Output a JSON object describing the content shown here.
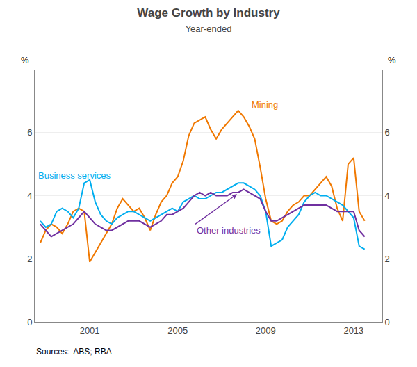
{
  "chart_data": {
    "type": "line",
    "title": "Wage Growth by Industry",
    "subtitle": "Year-ended",
    "ylabel": "%",
    "y2label": "%",
    "source": "Sources:  ABS; RBA",
    "x": [
      1998.75,
      1999.0,
      1999.25,
      1999.5,
      1999.75,
      2000.0,
      2000.25,
      2000.5,
      2000.75,
      2001.0,
      2001.25,
      2001.5,
      2001.75,
      2002.0,
      2002.25,
      2002.5,
      2002.75,
      2003.0,
      2003.25,
      2003.5,
      2003.75,
      2004.0,
      2004.25,
      2004.5,
      2004.75,
      2005.0,
      2005.25,
      2005.5,
      2005.75,
      2006.0,
      2006.25,
      2006.5,
      2006.75,
      2007.0,
      2007.25,
      2007.5,
      2007.75,
      2008.0,
      2008.25,
      2008.5,
      2008.75,
      2009.0,
      2009.25,
      2009.5,
      2009.75,
      2010.0,
      2010.25,
      2010.5,
      2010.75,
      2011.0,
      2011.25,
      2011.5,
      2011.75,
      2012.0,
      2012.25,
      2012.5,
      2012.75,
      2013.0,
      2013.25,
      2013.5
    ],
    "series": [
      {
        "name": "Mining",
        "color": "#F07800",
        "values": [
          2.5,
          2.9,
          3.1,
          3.0,
          2.8,
          3.1,
          3.5,
          3.6,
          3.5,
          1.9,
          2.2,
          2.5,
          2.8,
          3.1,
          3.6,
          3.9,
          3.7,
          3.5,
          3.6,
          3.3,
          2.9,
          3.4,
          3.8,
          4.0,
          4.4,
          4.6,
          5.1,
          5.9,
          6.3,
          6.4,
          6.5,
          6.1,
          5.8,
          6.1,
          6.3,
          6.5,
          6.7,
          6.5,
          6.2,
          5.8,
          4.9,
          3.9,
          3.2,
          3.1,
          3.2,
          3.5,
          3.7,
          3.8,
          4.0,
          4.0,
          4.2,
          4.4,
          4.6,
          4.3,
          3.6,
          3.2,
          5.0,
          5.2,
          3.5,
          3.2
        ]
      },
      {
        "name": "Business services",
        "color": "#00AEEF",
        "values": [
          3.2,
          3.0,
          3.1,
          3.5,
          3.6,
          3.5,
          3.3,
          3.6,
          4.4,
          4.5,
          3.8,
          3.4,
          3.2,
          3.1,
          3.3,
          3.4,
          3.5,
          3.5,
          3.4,
          3.3,
          3.2,
          3.3,
          3.4,
          3.5,
          3.6,
          3.5,
          3.8,
          3.9,
          4.0,
          3.9,
          3.9,
          4.0,
          4.1,
          4.1,
          4.2,
          4.3,
          4.4,
          4.4,
          4.3,
          4.2,
          4.0,
          3.5,
          2.4,
          2.5,
          2.6,
          3.0,
          3.2,
          3.4,
          3.8,
          4.0,
          4.1,
          4.0,
          4.0,
          3.9,
          3.8,
          3.7,
          3.5,
          3.3,
          2.4,
          2.3
        ]
      },
      {
        "name": "Other industries",
        "color": "#7030A0",
        "values": [
          3.1,
          2.9,
          2.7,
          2.8,
          2.9,
          3.0,
          3.1,
          3.3,
          3.5,
          3.3,
          3.1,
          3.0,
          2.9,
          2.9,
          3.0,
          3.1,
          3.2,
          3.2,
          3.2,
          3.1,
          3.0,
          3.1,
          3.2,
          3.4,
          3.4,
          3.5,
          3.6,
          3.8,
          4.0,
          4.1,
          4.0,
          4.1,
          4.0,
          4.0,
          4.0,
          4.1,
          4.1,
          4.2,
          4.1,
          4.0,
          3.9,
          3.5,
          3.2,
          3.2,
          3.3,
          3.4,
          3.5,
          3.6,
          3.7,
          3.7,
          3.7,
          3.7,
          3.7,
          3.6,
          3.5,
          3.5,
          3.5,
          3.5,
          2.9,
          2.7
        ]
      }
    ],
    "xlim": [
      1998.5,
      2014.3
    ],
    "xticks": [
      2001,
      2005,
      2009,
      2013
    ],
    "ylim": [
      0,
      8
    ],
    "yticks": [
      0,
      2,
      4,
      6,
      {
        "value": 8,
        "label": ""
      }
    ],
    "y2lim": [
      0,
      8
    ],
    "y2ticks": [
      0,
      2,
      4,
      6,
      {
        "value": 8,
        "label": ""
      }
    ],
    "grid": true,
    "annotations": [
      {
        "text": "Mining",
        "x": 2008.3,
        "y": 7.1,
        "color": "#F07800"
      },
      {
        "text": "Business services",
        "x": 1998.6,
        "y": 4.65,
        "color": "#00AEEF"
      },
      {
        "text": "Other industries",
        "x": 2005.8,
        "y": 3.1,
        "point": [
          2007.7,
          4.05
        ],
        "color": "#7030A0"
      }
    ]
  }
}
